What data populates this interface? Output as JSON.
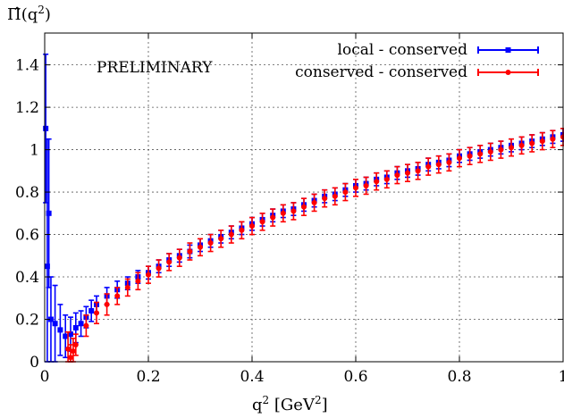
{
  "chart_data": {
    "type": "scatter",
    "title": "",
    "ylabel_main": "Π̂(q",
    "ylabel_sup": "2",
    "ylabel_close": ")",
    "xlabel_main": "q",
    "xlabel_sup": "2",
    "xlabel_unit_open": " [GeV",
    "xlabel_unit_sup": "2",
    "xlabel_unit_close": "]",
    "annotation": "PRELIMINARY",
    "xlim": [
      0,
      1
    ],
    "ylim": [
      0,
      1.55
    ],
    "grid": true,
    "legend_position": "top-right",
    "x_ticks": [
      0,
      0.2,
      0.4,
      0.6,
      0.8,
      1
    ],
    "x_tick_labels": [
      "0",
      "0.2",
      "0.4",
      "0.6",
      "0.8",
      "1"
    ],
    "y_ticks": [
      0,
      0.2,
      0.4,
      0.6,
      0.8,
      1,
      1.2,
      1.4
    ],
    "y_tick_labels": [
      "0",
      "0.2",
      "0.4",
      "0.6",
      "0.8",
      "1",
      "1.2",
      "1.4"
    ],
    "series": [
      {
        "name": "local - conserved",
        "color": "#0000ff",
        "marker": "square",
        "x": [
          0.002,
          0.005,
          0.008,
          0.012,
          0.02,
          0.03,
          0.04,
          0.05,
          0.06,
          0.07,
          0.08,
          0.09,
          0.1,
          0.12,
          0.14,
          0.16,
          0.18,
          0.2,
          0.22,
          0.24,
          0.26,
          0.28,
          0.3,
          0.32,
          0.34,
          0.36,
          0.38,
          0.4,
          0.42,
          0.44,
          0.46,
          0.48,
          0.5,
          0.52,
          0.54,
          0.56,
          0.58,
          0.6,
          0.62,
          0.64,
          0.66,
          0.68,
          0.7,
          0.72,
          0.74,
          0.76,
          0.78,
          0.8,
          0.82,
          0.84,
          0.86,
          0.88,
          0.9,
          0.92,
          0.94,
          0.96,
          0.98,
          1.0
        ],
        "y": [
          1.1,
          0.45,
          0.7,
          0.2,
          0.18,
          0.15,
          0.12,
          0.13,
          0.16,
          0.18,
          0.21,
          0.24,
          0.27,
          0.31,
          0.34,
          0.37,
          0.4,
          0.42,
          0.45,
          0.48,
          0.5,
          0.52,
          0.55,
          0.57,
          0.59,
          0.61,
          0.63,
          0.65,
          0.67,
          0.69,
          0.71,
          0.72,
          0.74,
          0.76,
          0.78,
          0.79,
          0.81,
          0.83,
          0.84,
          0.86,
          0.87,
          0.89,
          0.9,
          0.91,
          0.93,
          0.94,
          0.95,
          0.97,
          0.98,
          0.99,
          1.0,
          1.01,
          1.02,
          1.03,
          1.04,
          1.05,
          1.06,
          1.07
        ],
        "err": [
          0.35,
          0.6,
          0.35,
          0.2,
          0.18,
          0.12,
          0.1,
          0.08,
          0.07,
          0.06,
          0.05,
          0.05,
          0.04,
          0.04,
          0.04,
          0.03,
          0.03,
          0.03,
          0.03,
          0.03,
          0.03,
          0.03,
          0.03,
          0.03,
          0.03,
          0.03,
          0.03,
          0.03,
          0.03,
          0.03,
          0.03,
          0.03,
          0.03,
          0.03,
          0.03,
          0.03,
          0.03,
          0.03,
          0.03,
          0.03,
          0.03,
          0.03,
          0.03,
          0.03,
          0.03,
          0.03,
          0.03,
          0.03,
          0.03,
          0.03,
          0.03,
          0.03,
          0.03,
          0.03,
          0.03,
          0.03,
          0.03,
          0.03
        ]
      },
      {
        "name": "conserved - conserved",
        "color": "#ff0000",
        "marker": "circle",
        "x": [
          0.045,
          0.05,
          0.055,
          0.06,
          0.08,
          0.1,
          0.12,
          0.14,
          0.16,
          0.18,
          0.2,
          0.22,
          0.24,
          0.26,
          0.28,
          0.3,
          0.32,
          0.34,
          0.36,
          0.38,
          0.4,
          0.42,
          0.44,
          0.46,
          0.48,
          0.5,
          0.52,
          0.54,
          0.56,
          0.58,
          0.6,
          0.62,
          0.64,
          0.66,
          0.68,
          0.7,
          0.72,
          0.74,
          0.76,
          0.78,
          0.8,
          0.82,
          0.84,
          0.86,
          0.88,
          0.9,
          0.92,
          0.94,
          0.96,
          0.98,
          1.0
        ],
        "y": [
          0.06,
          0.02,
          0.05,
          0.08,
          0.17,
          0.23,
          0.27,
          0.31,
          0.35,
          0.38,
          0.41,
          0.44,
          0.47,
          0.49,
          0.52,
          0.54,
          0.56,
          0.58,
          0.6,
          0.62,
          0.64,
          0.66,
          0.68,
          0.7,
          0.71,
          0.73,
          0.75,
          0.77,
          0.78,
          0.8,
          0.82,
          0.83,
          0.85,
          0.86,
          0.88,
          0.89,
          0.9,
          0.92,
          0.93,
          0.94,
          0.96,
          0.97,
          0.98,
          0.99,
          1.0,
          1.01,
          1.02,
          1.03,
          1.04,
          1.05,
          1.06
        ],
        "err": [
          0.08,
          0.06,
          0.06,
          0.05,
          0.05,
          0.05,
          0.05,
          0.04,
          0.04,
          0.04,
          0.04,
          0.04,
          0.04,
          0.04,
          0.04,
          0.04,
          0.04,
          0.04,
          0.04,
          0.04,
          0.04,
          0.04,
          0.04,
          0.04,
          0.04,
          0.04,
          0.04,
          0.04,
          0.04,
          0.04,
          0.04,
          0.04,
          0.04,
          0.04,
          0.04,
          0.04,
          0.04,
          0.04,
          0.04,
          0.04,
          0.04,
          0.04,
          0.04,
          0.04,
          0.04,
          0.04,
          0.04,
          0.04,
          0.04,
          0.04,
          0.04
        ]
      }
    ]
  }
}
